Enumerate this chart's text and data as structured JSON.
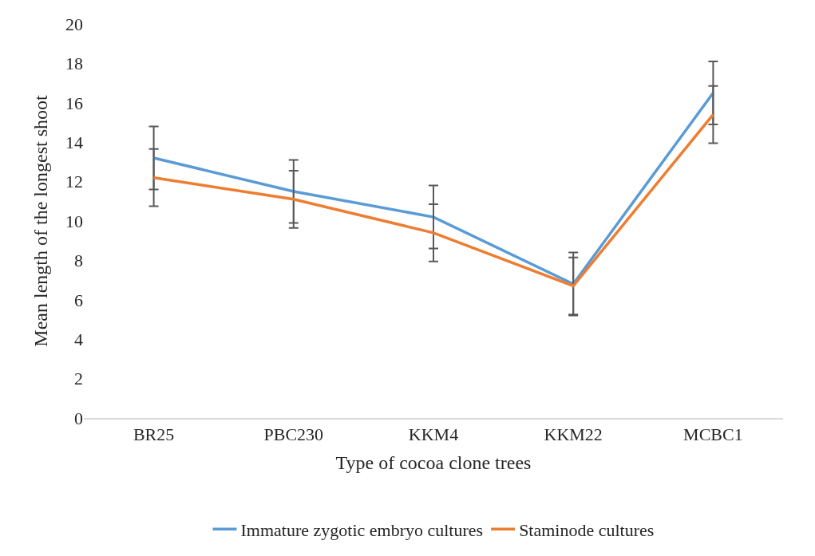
{
  "chart_data": {
    "type": "line",
    "xlabel": "Type of cocoa clone trees",
    "ylabel": "Mean length of the longest shoot",
    "categories": [
      "BR25",
      "PBC230",
      "KKM4",
      "KKM22",
      "MCBC1"
    ],
    "series": [
      {
        "name": "Immature zygotic embryo cultures",
        "color": "#5b9bd5",
        "values": [
          13.2,
          11.5,
          10.2,
          6.8,
          16.5
        ],
        "errors": [
          1.6,
          1.6,
          1.6,
          1.6,
          1.6
        ]
      },
      {
        "name": "Staminode cultures",
        "color": "#ed7d31",
        "values": [
          12.2,
          11.1,
          9.4,
          6.7,
          15.4
        ],
        "errors": [
          1.45,
          1.45,
          1.45,
          1.45,
          1.45
        ]
      }
    ],
    "ylim": [
      0,
      20
    ],
    "yticks": [
      0,
      2,
      4,
      6,
      8,
      10,
      12,
      14,
      16,
      18,
      20
    ],
    "legend": "bottom",
    "marker": "none",
    "line_style": "solid"
  }
}
